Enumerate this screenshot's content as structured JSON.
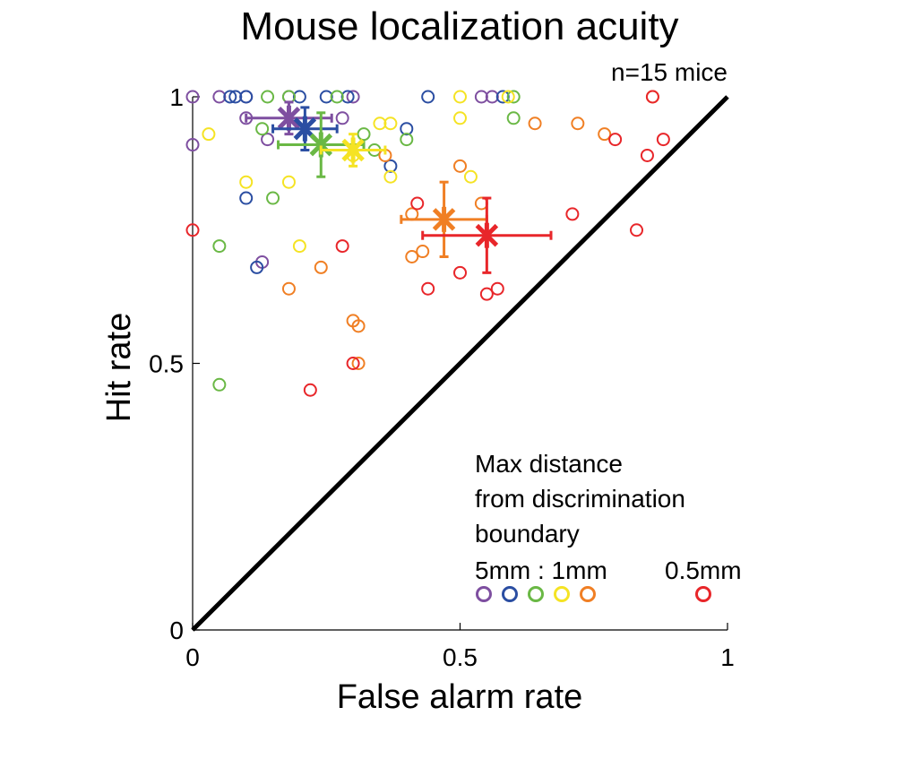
{
  "chart_data": {
    "type": "scatter",
    "title": "Mouse localization acuity",
    "annotation": "n=15 mice",
    "xlabel": "False alarm rate",
    "ylabel": "Hit rate",
    "xlim": [
      0,
      1
    ],
    "ylim": [
      0,
      1
    ],
    "x_ticks": [
      {
        "value": 0,
        "label": "0"
      },
      {
        "value": 0.5,
        "label": "0.5"
      },
      {
        "value": 1,
        "label": "1"
      }
    ],
    "y_ticks": [
      {
        "value": 0,
        "label": "0"
      },
      {
        "value": 0.5,
        "label": "0.5"
      },
      {
        "value": 1,
        "label": "1"
      }
    ],
    "grid": false,
    "reference_line": {
      "from": [
        0,
        0
      ],
      "to": [
        1,
        1
      ],
      "color": "#000000"
    },
    "legend": {
      "placement": "bottom-right",
      "title_lines": [
        "Max distance",
        "from discrimination",
        "boundary"
      ],
      "group_label_1": "5mm : 1mm",
      "group_label_2": "0.5mm"
    },
    "series": [
      {
        "color": "#7e4fa0",
        "points": [
          [
            0.0,
            1.0
          ],
          [
            0.05,
            1.0
          ],
          [
            0.1,
            1.0
          ],
          [
            0.18,
            1.0
          ],
          [
            0.3,
            1.0
          ],
          [
            0.54,
            1.0
          ],
          [
            0.56,
            1.0
          ],
          [
            0.0,
            0.91
          ],
          [
            0.1,
            0.96
          ],
          [
            0.14,
            0.92
          ],
          [
            0.28,
            0.96
          ],
          [
            0.13,
            0.69
          ]
        ],
        "mean": {
          "x": 0.18,
          "y": 0.96,
          "xerr": 0.08,
          "yerr": 0.03
        }
      },
      {
        "color": "#2b4ea2",
        "points": [
          [
            0.07,
            1.0
          ],
          [
            0.08,
            1.0
          ],
          [
            0.1,
            1.0
          ],
          [
            0.2,
            1.0
          ],
          [
            0.25,
            1.0
          ],
          [
            0.29,
            1.0
          ],
          [
            0.44,
            1.0
          ],
          [
            0.58,
            1.0
          ],
          [
            0.4,
            0.94
          ],
          [
            0.37,
            0.87
          ],
          [
            0.1,
            0.81
          ],
          [
            0.12,
            0.68
          ]
        ],
        "mean": {
          "x": 0.21,
          "y": 0.94,
          "xerr": 0.06,
          "yerr": 0.04
        }
      },
      {
        "color": "#6ab845",
        "points": [
          [
            0.14,
            1.0
          ],
          [
            0.18,
            1.0
          ],
          [
            0.27,
            1.0
          ],
          [
            0.6,
            1.0
          ],
          [
            0.13,
            0.94
          ],
          [
            0.32,
            0.93
          ],
          [
            0.34,
            0.9
          ],
          [
            0.4,
            0.92
          ],
          [
            0.6,
            0.96
          ],
          [
            0.15,
            0.81
          ],
          [
            0.05,
            0.72
          ],
          [
            0.05,
            0.46
          ]
        ],
        "mean": {
          "x": 0.24,
          "y": 0.91,
          "xerr": 0.08,
          "yerr": 0.06
        }
      },
      {
        "color": "#f5e324",
        "points": [
          [
            0.5,
            1.0
          ],
          [
            0.59,
            1.0
          ],
          [
            0.35,
            0.95
          ],
          [
            0.37,
            0.95
          ],
          [
            0.5,
            0.96
          ],
          [
            0.03,
            0.93
          ],
          [
            0.37,
            0.85
          ],
          [
            0.1,
            0.84
          ],
          [
            0.18,
            0.84
          ],
          [
            0.2,
            0.72
          ],
          [
            0.52,
            0.85
          ],
          [
            0.3,
            0.89
          ]
        ],
        "mean": {
          "x": 0.3,
          "y": 0.9,
          "xerr": 0.06,
          "yerr": 0.03
        }
      },
      {
        "color": "#f07f24",
        "points": [
          [
            0.86,
            1.0
          ],
          [
            0.64,
            0.95
          ],
          [
            0.72,
            0.95
          ],
          [
            0.77,
            0.93
          ],
          [
            0.36,
            0.89
          ],
          [
            0.5,
            0.87
          ],
          [
            0.41,
            0.78
          ],
          [
            0.54,
            0.8
          ],
          [
            0.41,
            0.7
          ],
          [
            0.43,
            0.71
          ],
          [
            0.24,
            0.68
          ],
          [
            0.18,
            0.64
          ],
          [
            0.3,
            0.58
          ],
          [
            0.31,
            0.57
          ],
          [
            0.31,
            0.5
          ]
        ],
        "mean": {
          "x": 0.47,
          "y": 0.77,
          "xerr": 0.08,
          "yerr": 0.07
        }
      },
      {
        "color": "#e8262a",
        "points": [
          [
            0.86,
            1.0
          ],
          [
            0.88,
            0.92
          ],
          [
            0.79,
            0.92
          ],
          [
            0.85,
            0.89
          ],
          [
            0.0,
            0.75
          ],
          [
            0.71,
            0.78
          ],
          [
            0.83,
            0.75
          ],
          [
            0.42,
            0.8
          ],
          [
            0.28,
            0.72
          ],
          [
            0.5,
            0.67
          ],
          [
            0.44,
            0.64
          ],
          [
            0.55,
            0.63
          ],
          [
            0.57,
            0.64
          ],
          [
            0.3,
            0.5
          ],
          [
            0.22,
            0.45
          ]
        ],
        "mean": {
          "x": 0.55,
          "y": 0.74,
          "xerr": 0.12,
          "yerr": 0.07
        }
      }
    ]
  }
}
